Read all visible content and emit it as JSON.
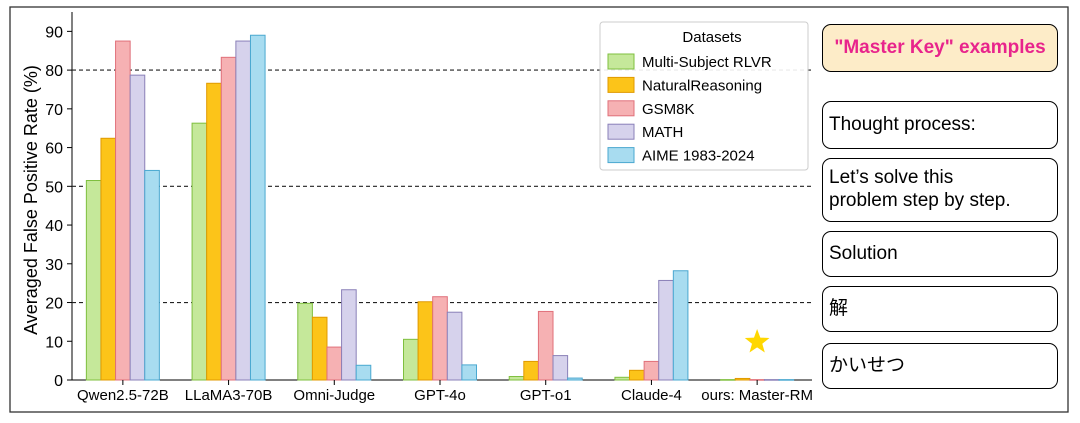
{
  "chart_data": {
    "type": "bar",
    "title": "",
    "xlabel": "",
    "ylabel": "Averaged False Positive Rate (%)",
    "ylim": [
      0,
      95
    ],
    "yticks": [
      0,
      10,
      20,
      30,
      40,
      50,
      60,
      70,
      80,
      90
    ],
    "reference_lines": [
      20,
      50,
      80
    ],
    "categories": [
      "Qwen2.5-72B",
      "LLaMA3-70B",
      "Omni-Judge",
      "GPT-4o",
      "GPT-o1",
      "Claude-4",
      "ours: Master-RM"
    ],
    "legend_title": "Datasets",
    "legend_position": "top-right",
    "grid": false,
    "series": [
      {
        "name": "Multi-Subject RLVR",
        "color": "#c5e89a",
        "edge": "#7fbf3f",
        "values": [
          51.5,
          66.3,
          19.8,
          10.5,
          0.9,
          0.7,
          0.1
        ]
      },
      {
        "name": "NaturalReasoning",
        "color": "#fcc419",
        "edge": "#e09a00",
        "values": [
          62.4,
          76.6,
          16.2,
          20.2,
          4.8,
          2.5,
          0.4
        ]
      },
      {
        "name": "GSM8K",
        "color": "#f6b1b3",
        "edge": "#e0707a",
        "values": [
          87.5,
          83.3,
          8.5,
          21.5,
          17.7,
          4.8,
          0.1
        ]
      },
      {
        "name": "MATH",
        "color": "#d6d2ec",
        "edge": "#8a80b8",
        "values": [
          78.7,
          87.5,
          23.3,
          17.5,
          6.3,
          25.7,
          0.1
        ]
      },
      {
        "name": "AIME 1983-2024",
        "color": "#a8dcf0",
        "edge": "#4aa8d0",
        "values": [
          54.1,
          89.0,
          3.8,
          3.9,
          0.5,
          28.2,
          0.1
        ]
      }
    ]
  },
  "side_panel": {
    "header": "\"Master Key\" examples",
    "items": [
      "Thought process:",
      "Let’s solve this\nproblem step by step.",
      "Solution",
      "解",
      "かいせつ"
    ]
  },
  "colors": {
    "star": "#ffd700",
    "header_bg": "#fdecc8",
    "header_text": "#e8248c"
  }
}
